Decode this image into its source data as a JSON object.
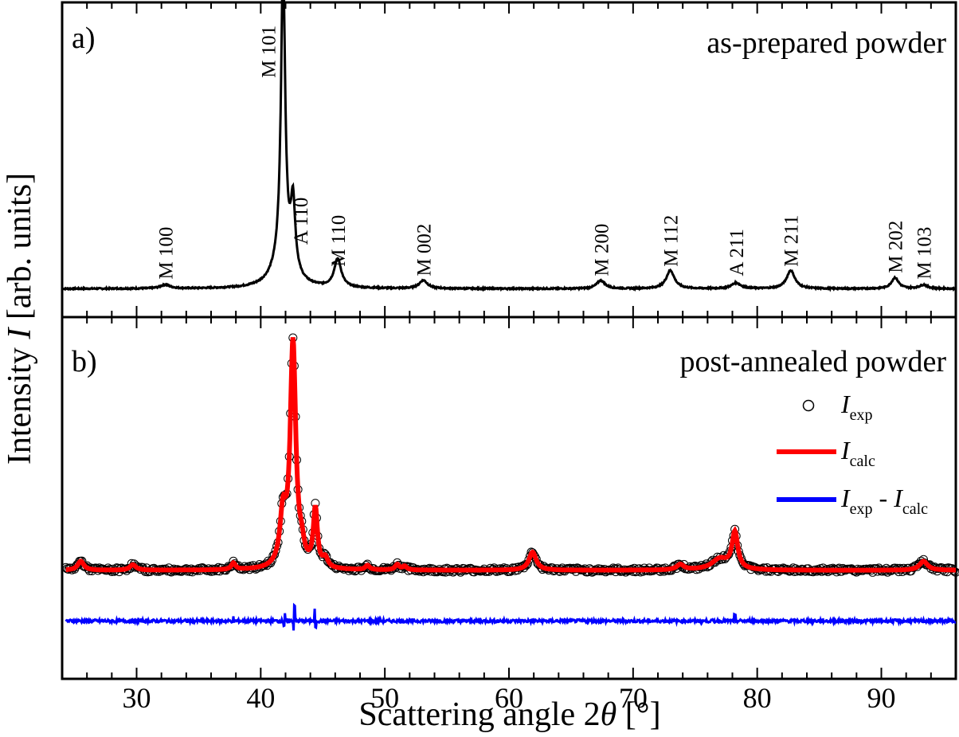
{
  "chart_data": {
    "type": "line",
    "xlabel_prefix": "Scattering angle 2",
    "xlabel_symbol": "θ",
    "xlabel_suffix": " [°]",
    "ylabel_prefix": "Intensity ",
    "ylabel_symbol": "I",
    "ylabel_suffix": " [arb. units]",
    "xlim": [
      24,
      96
    ],
    "xticks": [
      30,
      40,
      50,
      60,
      70,
      80,
      90
    ],
    "xtick_labels": [
      "30",
      "40",
      "50",
      "60",
      "70",
      "80",
      "90"
    ],
    "minor_xtick_step": 2,
    "panels": [
      {
        "letter": "a)",
        "title": "as-prepared powder",
        "ylim": [
          0,
          1
        ],
        "baseline": 0.09,
        "line_color": "#000000",
        "peaks": [
          {
            "x": 32.3,
            "h": 0.012,
            "w": 0.45
          },
          {
            "x": 41.8,
            "h": 0.93,
            "w": 0.2
          },
          {
            "x": 41.8,
            "h": 0.09,
            "w": 0.9
          },
          {
            "x": 42.6,
            "h": 0.22,
            "w": 0.22
          },
          {
            "x": 46.2,
            "h": 0.09,
            "w": 0.35
          },
          {
            "x": 53.1,
            "h": 0.026,
            "w": 0.4
          },
          {
            "x": 67.4,
            "h": 0.026,
            "w": 0.4
          },
          {
            "x": 73.0,
            "h": 0.058,
            "w": 0.4
          },
          {
            "x": 78.3,
            "h": 0.018,
            "w": 0.45
          },
          {
            "x": 82.7,
            "h": 0.058,
            "w": 0.4
          },
          {
            "x": 91.1,
            "h": 0.035,
            "w": 0.35
          },
          {
            "x": 93.4,
            "h": 0.012,
            "w": 0.4
          }
        ],
        "annotations": [
          {
            "text": "M 100",
            "x": 32.3,
            "y": 0.12
          },
          {
            "text": "M 101",
            "x": 40.6,
            "y": 0.76
          },
          {
            "text": "A 110",
            "x": 43.2,
            "y": 0.23
          },
          {
            "text": "M 110",
            "x": 46.2,
            "y": 0.16
          },
          {
            "text": "M 002",
            "x": 53.1,
            "y": 0.13
          },
          {
            "text": "M 200",
            "x": 67.4,
            "y": 0.13
          },
          {
            "text": "M 112",
            "x": 73.0,
            "y": 0.16
          },
          {
            "text": "A 211",
            "x": 78.3,
            "y": 0.13
          },
          {
            "text": "M 211",
            "x": 82.7,
            "y": 0.16
          },
          {
            "text": "M 202",
            "x": 91.1,
            "y": 0.14
          },
          {
            "text": "M 103",
            "x": 93.4,
            "y": 0.12
          }
        ]
      },
      {
        "letter": "b)",
        "title": "post-annealed powder",
        "ylim": [
          0,
          1
        ],
        "baseline": 0.3,
        "difference_offset": 0.16,
        "peaks": [
          {
            "x": 25.5,
            "h": 0.025,
            "w": 0.3
          },
          {
            "x": 29.7,
            "h": 0.015,
            "w": 0.3
          },
          {
            "x": 37.8,
            "h": 0.018,
            "w": 0.2
          },
          {
            "x": 41.8,
            "h": 0.14,
            "w": 0.3
          },
          {
            "x": 42.6,
            "h": 0.62,
            "w": 0.27
          },
          {
            "x": 43.3,
            "h": 0.04,
            "w": 0.25
          },
          {
            "x": 44.4,
            "h": 0.16,
            "w": 0.2
          },
          {
            "x": 45.2,
            "h": 0.025,
            "w": 0.25
          },
          {
            "x": 48.6,
            "h": 0.012,
            "w": 0.2
          },
          {
            "x": 51.0,
            "h": 0.015,
            "w": 0.2
          },
          {
            "x": 51.6,
            "h": 0.01,
            "w": 0.2
          },
          {
            "x": 61.9,
            "h": 0.05,
            "w": 0.35
          },
          {
            "x": 73.8,
            "h": 0.015,
            "w": 0.35
          },
          {
            "x": 77.0,
            "h": 0.03,
            "w": 0.8
          },
          {
            "x": 78.2,
            "h": 0.1,
            "w": 0.28
          },
          {
            "x": 93.4,
            "h": 0.025,
            "w": 0.4
          }
        ],
        "diff_spikes": [
          {
            "x": 42.7,
            "h": 0.045
          },
          {
            "x": 41.9,
            "h": 0.02
          },
          {
            "x": 44.4,
            "h": 0.035
          },
          {
            "x": 78.2,
            "h": 0.015
          },
          {
            "x": 37.8,
            "h": 0.01
          }
        ],
        "series": [
          {
            "name_main": "I",
            "name_sub": "exp",
            "style": "open-circles",
            "color": "#000000"
          },
          {
            "name_main": "I",
            "name_sub": "calc",
            "style": "line",
            "color": "#ff0000"
          },
          {
            "name_main": "I",
            "name_sub": "exp",
            "operator": " - ",
            "name_main2": "I",
            "name_sub2": "calc",
            "style": "line",
            "color": "#0000ff"
          }
        ],
        "legend_position": "right"
      }
    ]
  }
}
